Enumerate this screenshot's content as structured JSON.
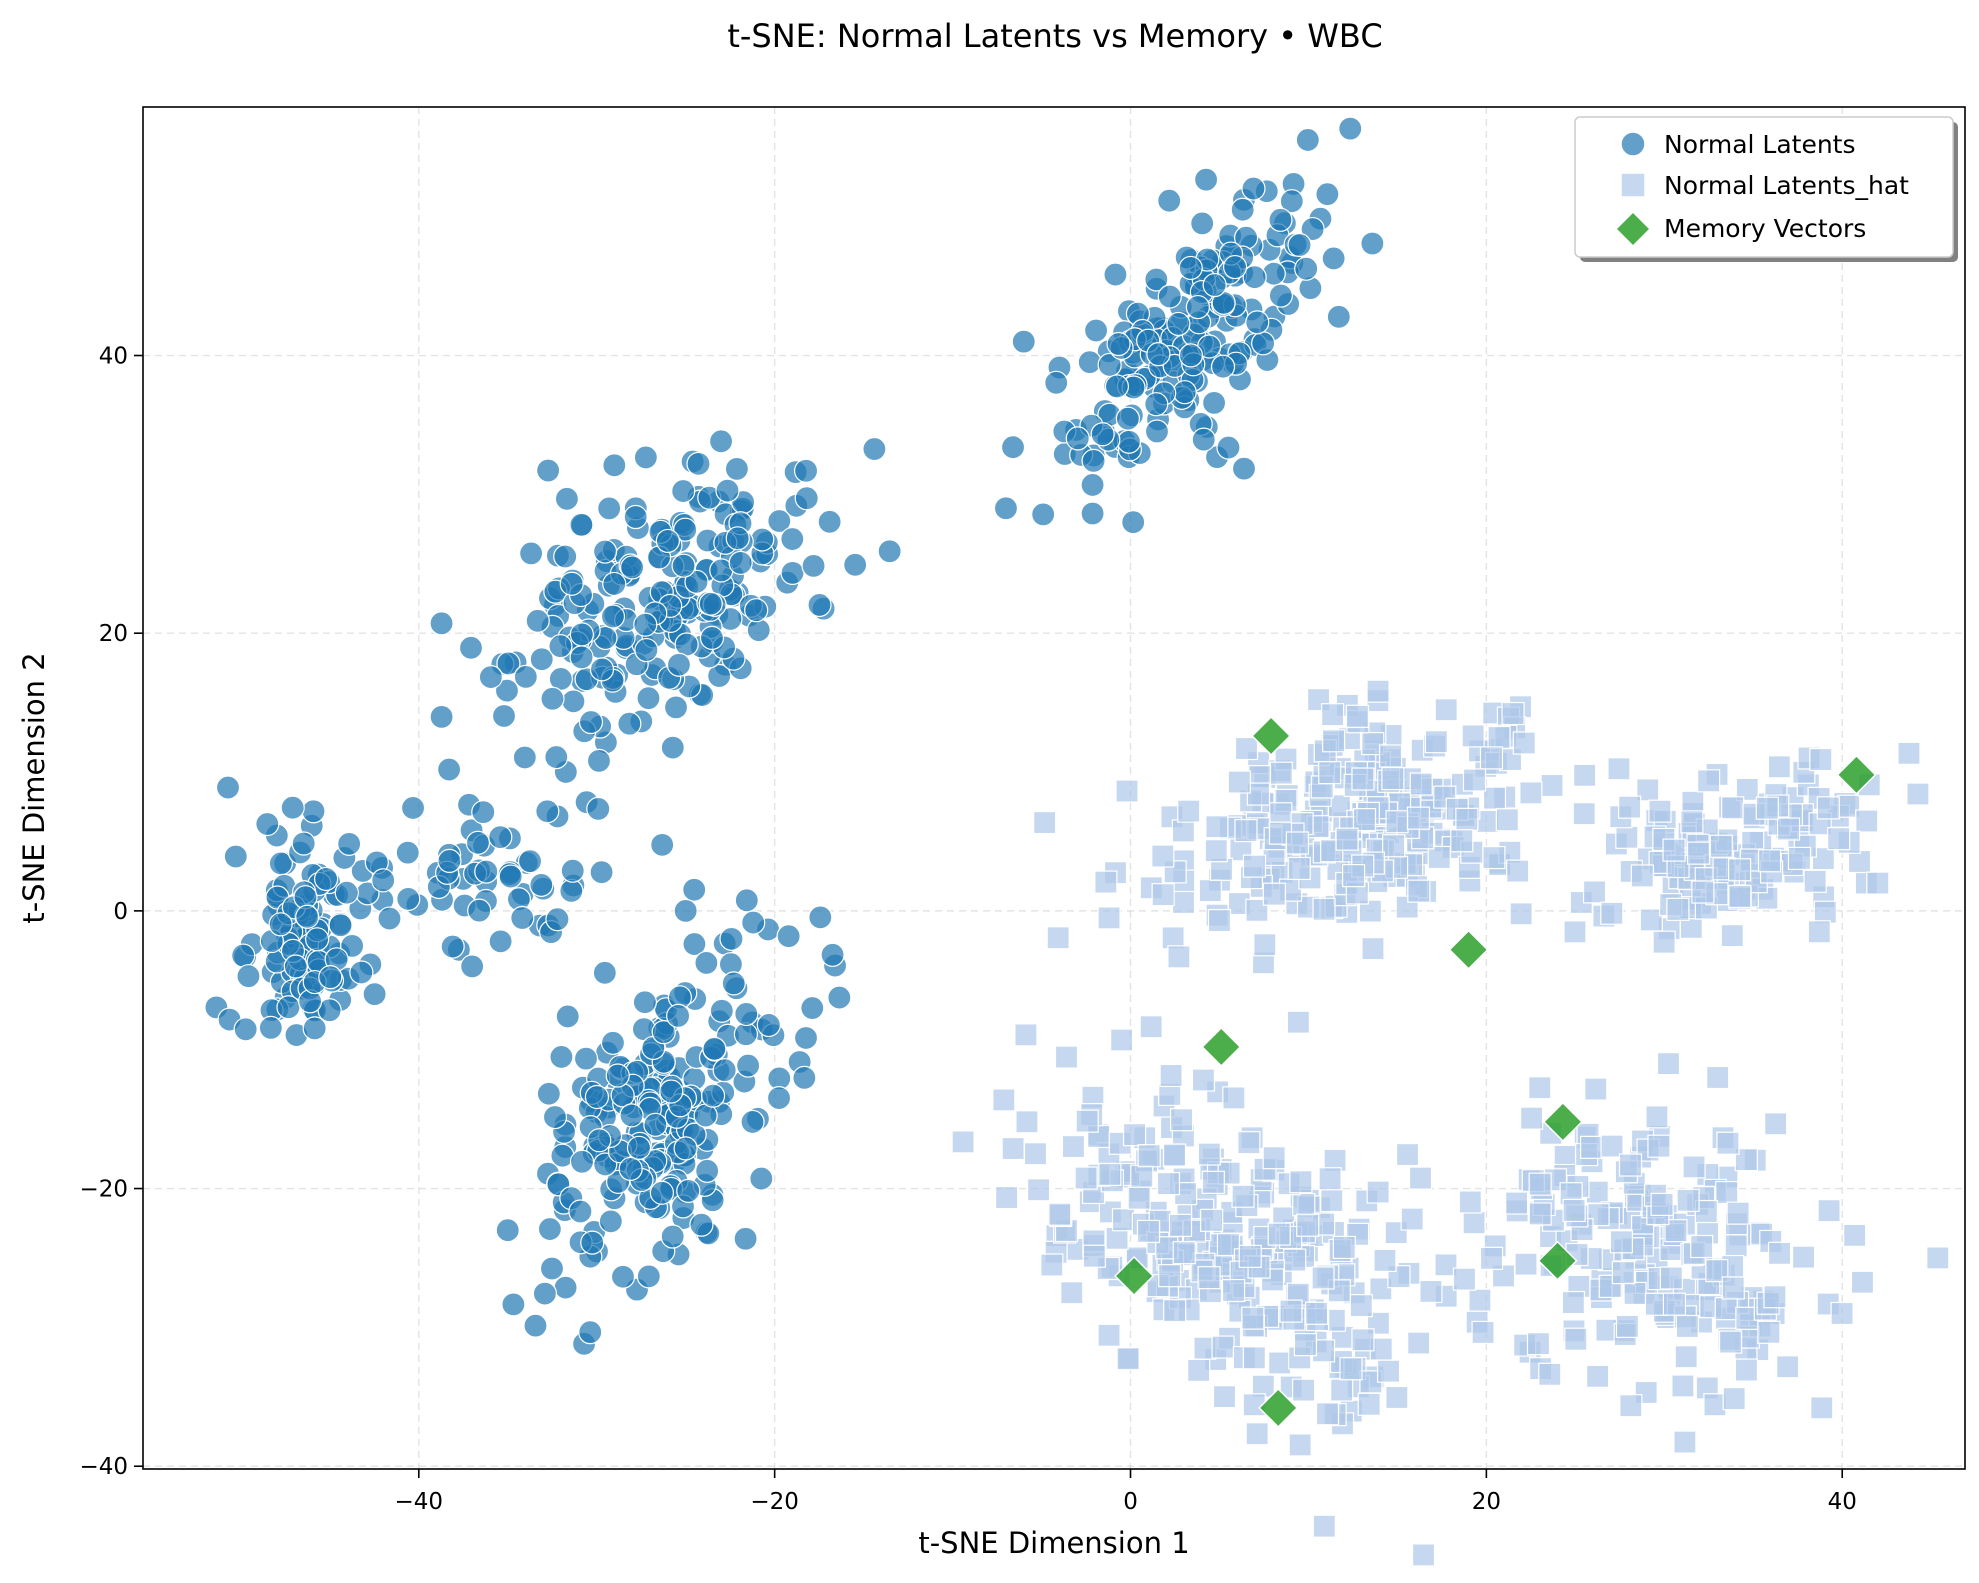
{
  "chart_data": {
    "type": "scatter",
    "title": "t-SNE: Normal Latents vs Memory • WBC",
    "xlabel": "t-SNE Dimension 1",
    "ylabel": "t-SNE Dimension 2",
    "xlim": [
      -55.5,
      46.9
    ],
    "ylim": [
      -40.2,
      57.9
    ],
    "xticks": [
      {
        "value": -40,
        "label": "−40"
      },
      {
        "value": -20,
        "label": "−20"
      },
      {
        "value": 0,
        "label": "0"
      },
      {
        "value": 20,
        "label": "20"
      },
      {
        "value": 40,
        "label": "40"
      }
    ],
    "yticks": [
      {
        "value": -40,
        "label": "−40"
      },
      {
        "value": -20,
        "label": "−20"
      },
      {
        "value": 0,
        "label": "0"
      },
      {
        "value": 20,
        "label": "20"
      },
      {
        "value": 40,
        "label": "40"
      }
    ],
    "grid": true,
    "legend_position": "top-right",
    "series": [
      {
        "name": "Normal Latents",
        "marker": "circle",
        "color": "#1f77b4",
        "clusters": [
          {
            "cx": 3.0,
            "cy": 41.0,
            "sx": 3.6,
            "sy": 5.4,
            "rho": 0.75,
            "n": 210
          },
          {
            "cx": -26.0,
            "cy": 22.0,
            "sx": 4.2,
            "sy": 4.6,
            "rho": 0.45,
            "n": 230
          },
          {
            "cx": -46.5,
            "cy": -1.8,
            "sx": 1.8,
            "sy": 3.3,
            "rho": 0.0,
            "n": 110
          },
          {
            "cx": -36.0,
            "cy": 2.5,
            "sx": 4.2,
            "sy": 3.2,
            "rho": 0.2,
            "n": 60
          },
          {
            "cx": -26.0,
            "cy": -14.0,
            "sx": 3.8,
            "sy": 6.6,
            "rho": 0.55,
            "n": 240
          }
        ],
        "extra_points": [
          [
            -6.0,
            41.0
          ],
          [
            -7.0,
            29.0
          ],
          [
            -35.0,
            -23.0
          ],
          [
            -37.0,
            -4.0
          ],
          [
            -25.0,
            0.0
          ],
          [
            -42.0,
            2.2
          ]
        ]
      },
      {
        "name": "Normal Latents_hat",
        "marker": "square",
        "color": "#aec7e8",
        "clusters": [
          {
            "cx": 12.5,
            "cy": 6.5,
            "sx": 5.0,
            "sy": 3.6,
            "rho": 0.25,
            "n": 260
          },
          {
            "cx": 34.0,
            "cy": 4.5,
            "sx": 3.8,
            "sy": 3.2,
            "rho": 0.35,
            "n": 140
          },
          {
            "cx": 5.5,
            "cy": -24.0,
            "sx": 5.6,
            "sy": 5.8,
            "rho": -0.45,
            "n": 280
          },
          {
            "cx": 29.0,
            "cy": -24.0,
            "sx": 4.8,
            "sy": 5.4,
            "rho": -0.25,
            "n": 200
          }
        ],
        "extra_points": [
          [
            22.5,
            8.5
          ],
          [
            25.5,
            7.0
          ],
          [
            5.0,
            -0.7
          ],
          [
            -0.5,
            -9.3
          ],
          [
            33.0,
            -12.0
          ],
          [
            42.0,
            2.0
          ]
        ]
      },
      {
        "name": "Memory Vectors",
        "marker": "diamond",
        "color": "#2ca02c",
        "points": [
          [
            7.9,
            12.6
          ],
          [
            40.8,
            9.8
          ],
          [
            19.0,
            -2.8
          ],
          [
            5.1,
            -9.8
          ],
          [
            24.3,
            -15.2
          ],
          [
            24.0,
            -25.2
          ],
          [
            0.2,
            -26.3
          ],
          [
            8.3,
            -35.8
          ]
        ]
      }
    ],
    "random_seed": 20240517
  }
}
